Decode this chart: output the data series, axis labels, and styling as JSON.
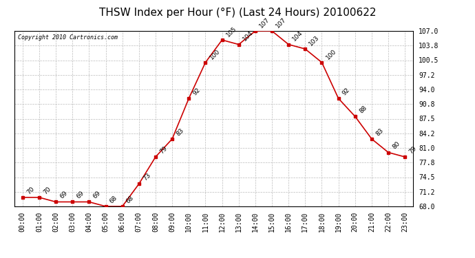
{
  "title": "THSW Index per Hour (°F) (Last 24 Hours) 20100622",
  "copyright": "Copyright 2010 Cartronics.com",
  "hours": [
    "00:00",
    "01:00",
    "02:00",
    "03:00",
    "04:00",
    "05:00",
    "06:00",
    "07:00",
    "08:00",
    "09:00",
    "10:00",
    "11:00",
    "12:00",
    "13:00",
    "14:00",
    "15:00",
    "16:00",
    "17:00",
    "18:00",
    "19:00",
    "20:00",
    "21:00",
    "22:00",
    "23:00"
  ],
  "values": [
    70,
    70,
    69,
    69,
    69,
    68,
    68,
    73,
    79,
    83,
    92,
    100,
    105,
    104,
    107,
    107,
    104,
    103,
    100,
    92,
    88,
    83,
    80,
    79
  ],
  "line_color": "#cc0000",
  "marker_color": "#cc0000",
  "bg_color": "#ffffff",
  "grid_color": "#bbbbbb",
  "ylim_min": 68.0,
  "ylim_max": 107.0,
  "yticks": [
    68.0,
    71.2,
    74.5,
    77.8,
    81.0,
    84.2,
    87.5,
    90.8,
    94.0,
    97.2,
    100.5,
    103.8,
    107.0
  ],
  "title_fontsize": 11,
  "label_fontsize": 7,
  "annotation_fontsize": 6.5
}
